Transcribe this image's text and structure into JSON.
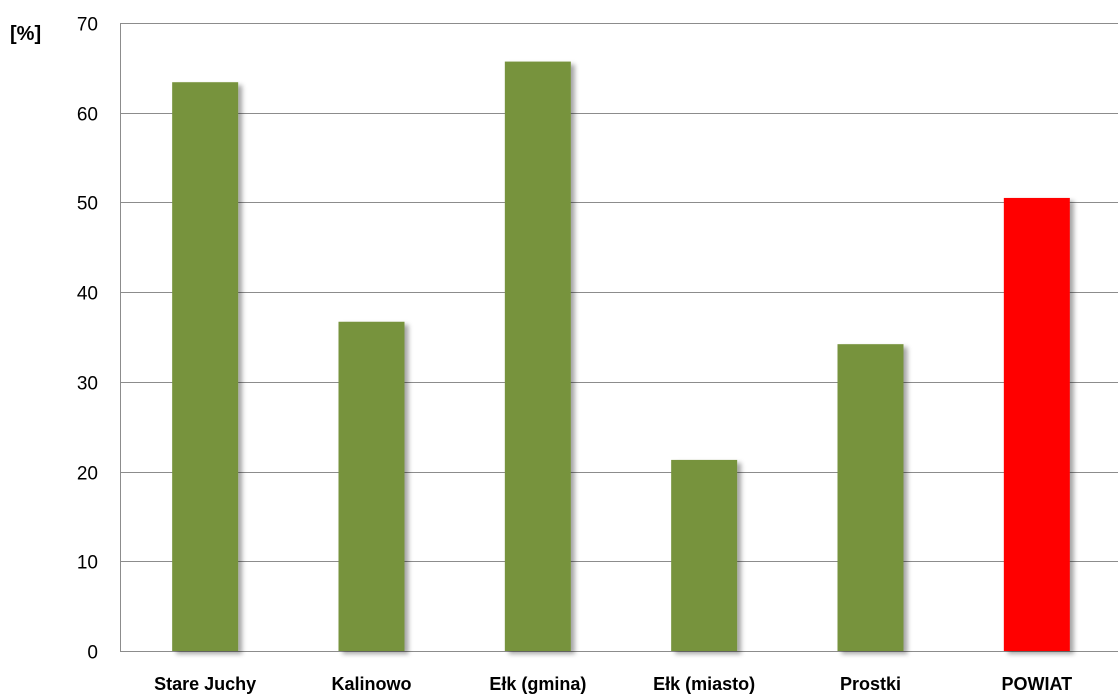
{
  "chart_data": {
    "type": "bar",
    "title": "",
    "xlabel": "",
    "ylabel": "[%]",
    "ylim": [
      0,
      70
    ],
    "yticks": [
      0,
      10,
      20,
      30,
      40,
      50,
      60,
      70
    ],
    "grid": true,
    "categories": [
      "Stare Juchy",
      "Kalinowo",
      "Ełk (gmina)",
      "Ełk (miasto)",
      "Prostki",
      "POWIAT"
    ],
    "values": [
      63.4,
      36.7,
      65.7,
      21.3,
      34.2,
      50.5
    ],
    "bar_colors": [
      "#77933c",
      "#77933c",
      "#77933c",
      "#77933c",
      "#77933c",
      "#ff0000"
    ]
  }
}
